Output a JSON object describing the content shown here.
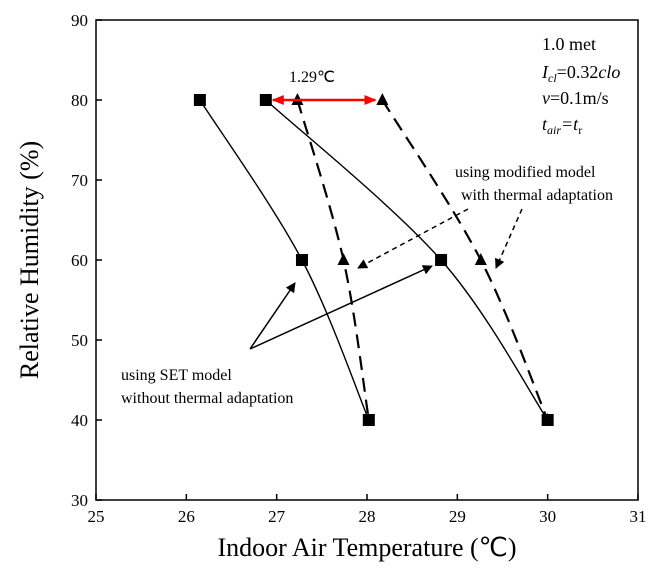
{
  "chart_data": {
    "type": "scatter",
    "title": "",
    "xlabel": "Indoor Air Temperature (℃)",
    "ylabel": "Relative Humidity (%)",
    "xlim": [
      25,
      31
    ],
    "ylim": [
      30,
      90
    ],
    "xticks": [
      25,
      26,
      27,
      28,
      29,
      30,
      31
    ],
    "yticks": [
      30,
      40,
      50,
      60,
      70,
      80,
      90
    ],
    "grid": false,
    "series": [
      {
        "style": "solid",
        "marker": "square",
        "points": [
          [
            26.15,
            80
          ],
          [
            27.28,
            60
          ],
          [
            28.02,
            40
          ]
        ]
      },
      {
        "style": "solid",
        "marker": "square",
        "points": [
          [
            26.88,
            80
          ],
          [
            28.82,
            60
          ],
          [
            30.0,
            40
          ]
        ]
      },
      {
        "style": "dashed",
        "marker": "triangle",
        "points": [
          [
            27.23,
            80
          ],
          [
            27.74,
            60
          ],
          [
            28.02,
            40
          ]
        ]
      },
      {
        "style": "dashed",
        "marker": "triangle",
        "points": [
          [
            28.17,
            80
          ],
          [
            29.26,
            60
          ],
          [
            30.0,
            40
          ]
        ]
      }
    ],
    "annotations": {
      "gap_label": "1.29℃",
      "gap_from": 26.88,
      "gap_to": 28.17,
      "gap_y": 80,
      "gap_color": "#ff0000",
      "conditions": {
        "metabolic": "1.0 met",
        "icl_sym": "I",
        "icl_sub": "cl",
        "icl_val": "=0.32",
        "icl_unit": "clo",
        "v_sym": "v",
        "v_val": "=0.1m/s",
        "t_sym": "t",
        "t_sub": "air",
        "t_eq": "=t",
        "t_sub2": "r"
      },
      "modified_line1": "using modified model",
      "modified_line2": "with thermal adaptation",
      "set_line1": "using SET model",
      "set_line2": "without thermal adaptation"
    }
  }
}
